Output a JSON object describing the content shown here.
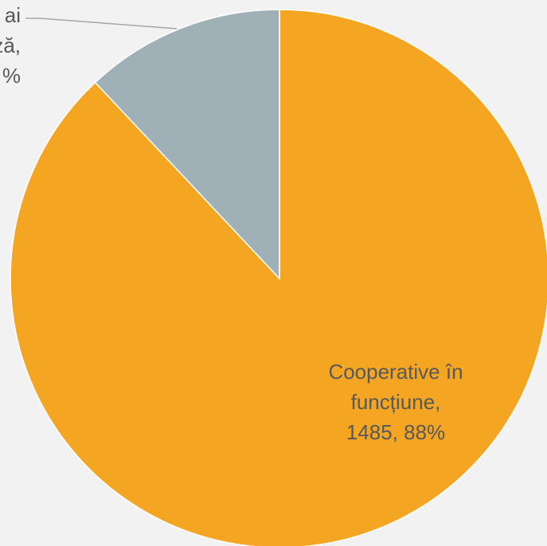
{
  "chart_data": {
    "type": "pie",
    "slices": [
      {
        "label_lines": [
          "ai",
          "ză,",
          "%"
        ],
        "value": 12,
        "color": "#9fb0b6"
      },
      {
        "label_lines": [
          "Cooperative în",
          "funcțiune,",
          "1485, 88%"
        ],
        "value": 88,
        "color": "#f4a521"
      }
    ],
    "label_color": "#595959",
    "leader_color": "#a6a6a6",
    "background": "#f2f2f2",
    "slice_border_color": "#ffffff"
  }
}
